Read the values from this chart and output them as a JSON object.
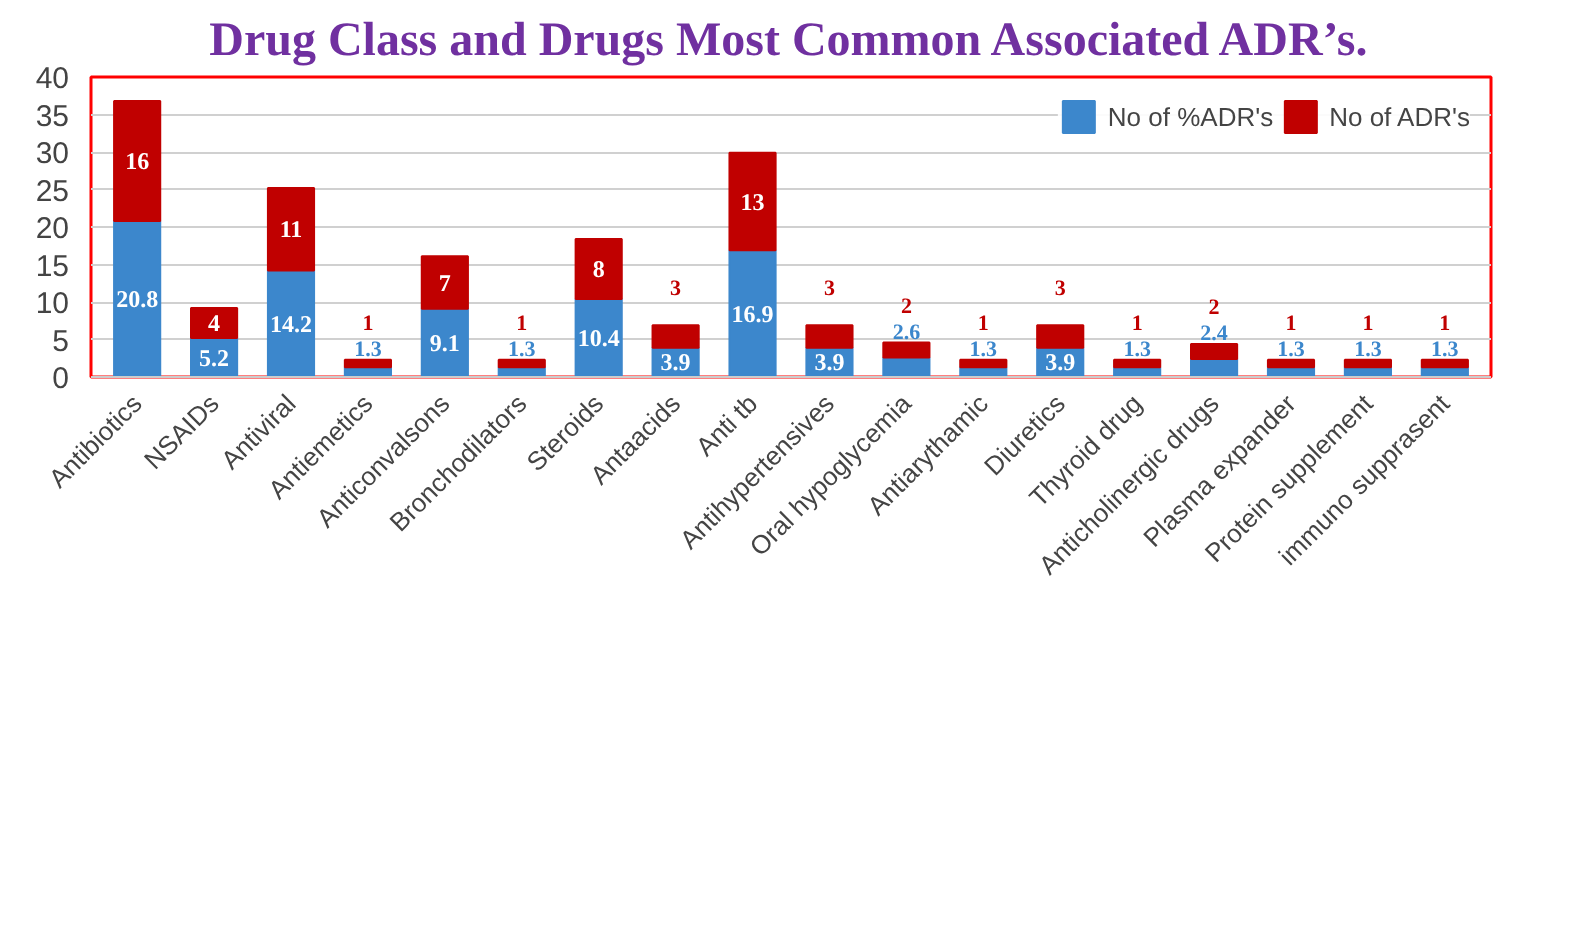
{
  "chart_data": {
    "type": "bar",
    "title": "Drug Class and Drugs Most Common Associated ADR’s.",
    "categories": [
      "Antibiotics",
      "NSAIDs",
      "Antiviral",
      "Antiemetics",
      "Anticonvalsons",
      "Bronchodilators",
      "Steroids",
      "Antaacids",
      "Anti tb",
      "Antihypertensives",
      "Oral hypoglycemia",
      "Antiarythamic",
      "Diuretics",
      "Thyroid drug",
      "Anticholinergic drugs",
      "Plasma expander",
      "Protein supplement",
      "immuno supprasent"
    ],
    "stacked": true,
    "data_labels": true,
    "grid": "y",
    "legend": "top right",
    "ylim": [
      0,
      40
    ],
    "yticks": [
      0,
      5,
      10,
      15,
      20,
      25,
      30,
      35,
      40
    ],
    "series": [
      {
        "name": "No of %ADR's",
        "color": "#3c87cc",
        "values": [
          20.8,
          5.2,
          14.2,
          1.3,
          9.1,
          1.3,
          10.4,
          3.9,
          16.9,
          3.9,
          2.6,
          1.3,
          3.9,
          1.3,
          2.4,
          1.3,
          1.3,
          1.3
        ]
      },
      {
        "name": "No of ADR's",
        "color": "#c00000",
        "values": [
          16,
          4,
          11,
          1,
          7,
          1,
          8,
          3,
          13,
          3,
          2,
          1,
          3,
          1,
          2,
          1,
          1,
          1
        ]
      }
    ]
  }
}
